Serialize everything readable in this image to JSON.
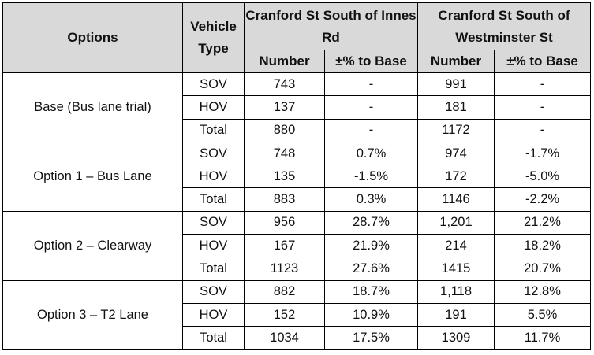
{
  "headers": {
    "options": "Options",
    "vehicle_type": "Vehicle Type",
    "group1": "Cranford St South of Innes Rd",
    "group2": "Cranford St South of Westminster St",
    "number": "Number",
    "pct": "±% to Base"
  },
  "groups": [
    {
      "option": "Base (Bus lane trial)",
      "rows": [
        {
          "type": "SOV",
          "n1": "743",
          "p1": "-",
          "n2": "991",
          "p2": "-"
        },
        {
          "type": "HOV",
          "n1": "137",
          "p1": "-",
          "n2": "181",
          "p2": "-"
        },
        {
          "type": "Total",
          "n1": "880",
          "p1": "-",
          "n2": "1172",
          "p2": "-"
        }
      ]
    },
    {
      "option": "Option 1 – Bus Lane",
      "rows": [
        {
          "type": "SOV",
          "n1": "748",
          "p1": "0.7%",
          "n2": "974",
          "p2": "-1.7%"
        },
        {
          "type": "HOV",
          "n1": "135",
          "p1": "-1.5%",
          "n2": "172",
          "p2": "-5.0%"
        },
        {
          "type": "Total",
          "n1": "883",
          "p1": "0.3%",
          "n2": "1146",
          "p2": "-2.2%"
        }
      ]
    },
    {
      "option": "Option 2 – Clearway",
      "rows": [
        {
          "type": "SOV",
          "n1": "956",
          "p1": "28.7%",
          "n2": "1,201",
          "p2": "21.2%"
        },
        {
          "type": "HOV",
          "n1": "167",
          "p1": "21.9%",
          "n2": "214",
          "p2": "18.2%"
        },
        {
          "type": "Total",
          "n1": "1123",
          "p1": "27.6%",
          "n2": "1415",
          "p2": "20.7%"
        }
      ]
    },
    {
      "option": "Option 3 – T2 Lane",
      "rows": [
        {
          "type": "SOV",
          "n1": "882",
          "p1": "18.7%",
          "n2": "1,118",
          "p2": "12.8%"
        },
        {
          "type": "HOV",
          "n1": "152",
          "p1": "10.9%",
          "n2": "191",
          "p2": "5.5%"
        },
        {
          "type": "Total",
          "n1": "1034",
          "p1": "17.5%",
          "n2": "1309",
          "p2": "11.7%"
        }
      ]
    }
  ],
  "colors": {
    "header_bg": "#d9d9d9",
    "border": "#000000"
  }
}
